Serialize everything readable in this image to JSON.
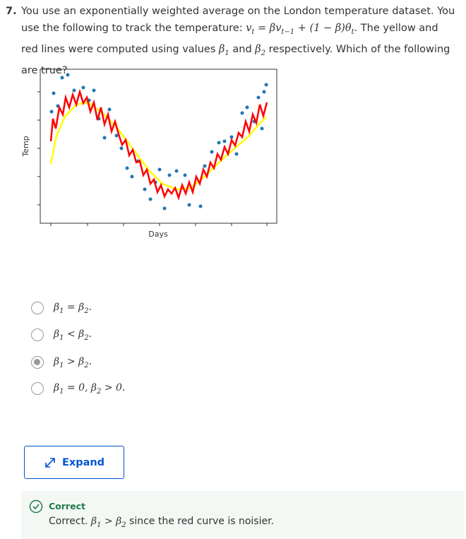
{
  "question": {
    "number": "7.",
    "segments": [
      "You use an exponentially weighted average on the London temperature dataset. You use the following to track the temperature: ",
      "v",
      "t",
      " = β",
      "v",
      "t−1",
      " + (1 − β)θ",
      "t",
      ". The yellow and red lines were computed using values ",
      "β",
      "1",
      " and ",
      "β",
      "2",
      " respectively. Which of the following are true?"
    ],
    "figure": {
      "x_label": "Days",
      "y_label": "Temp"
    }
  },
  "options": [
    [
      "β",
      "1",
      " = ",
      "β",
      "2",
      "."
    ],
    [
      "β",
      "1",
      " < ",
      "β",
      "2",
      "."
    ],
    [
      "β",
      "1",
      " > ",
      "β",
      "2",
      "."
    ],
    [
      "β",
      "1",
      " = 0, ",
      "β",
      "2",
      " > 0."
    ]
  ],
  "expand_button": "Expand",
  "feedback": {
    "status": "Correct",
    "segments": [
      "Correct. ",
      "β",
      "1",
      " > ",
      "β",
      "2",
      " since the red curve is noisier."
    ]
  }
}
